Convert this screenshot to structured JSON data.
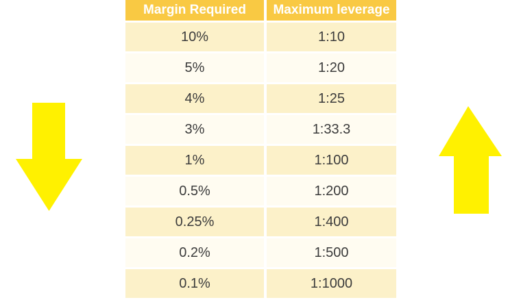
{
  "chart_data": {
    "type": "table",
    "columns": [
      "Margin Required",
      "Maximum leverage"
    ],
    "rows": [
      {
        "margin": "10%",
        "leverage": "1:10"
      },
      {
        "margin": "5%",
        "leverage": "1:20"
      },
      {
        "margin": "4%",
        "leverage": "1:25"
      },
      {
        "margin": "3%",
        "leverage": "1:33.3"
      },
      {
        "margin": "1%",
        "leverage": "1:100"
      },
      {
        "margin": "0.5%",
        "leverage": "1:200"
      },
      {
        "margin": "0.25%",
        "leverage": "1:400"
      },
      {
        "margin": "0.2%",
        "leverage": "1:500"
      },
      {
        "margin": "0.1%",
        "leverage": "1:1000"
      }
    ]
  },
  "icons": {
    "left": "down-arrow",
    "right": "up-arrow"
  },
  "colors": {
    "header_gold": "#f9c943",
    "header_text": "#ffffff",
    "row_cream": "#fcf1c9",
    "row_pale": "#fffcf1",
    "text_dark": "#3b3b3b",
    "arrow_yellow": "#fff100"
  }
}
